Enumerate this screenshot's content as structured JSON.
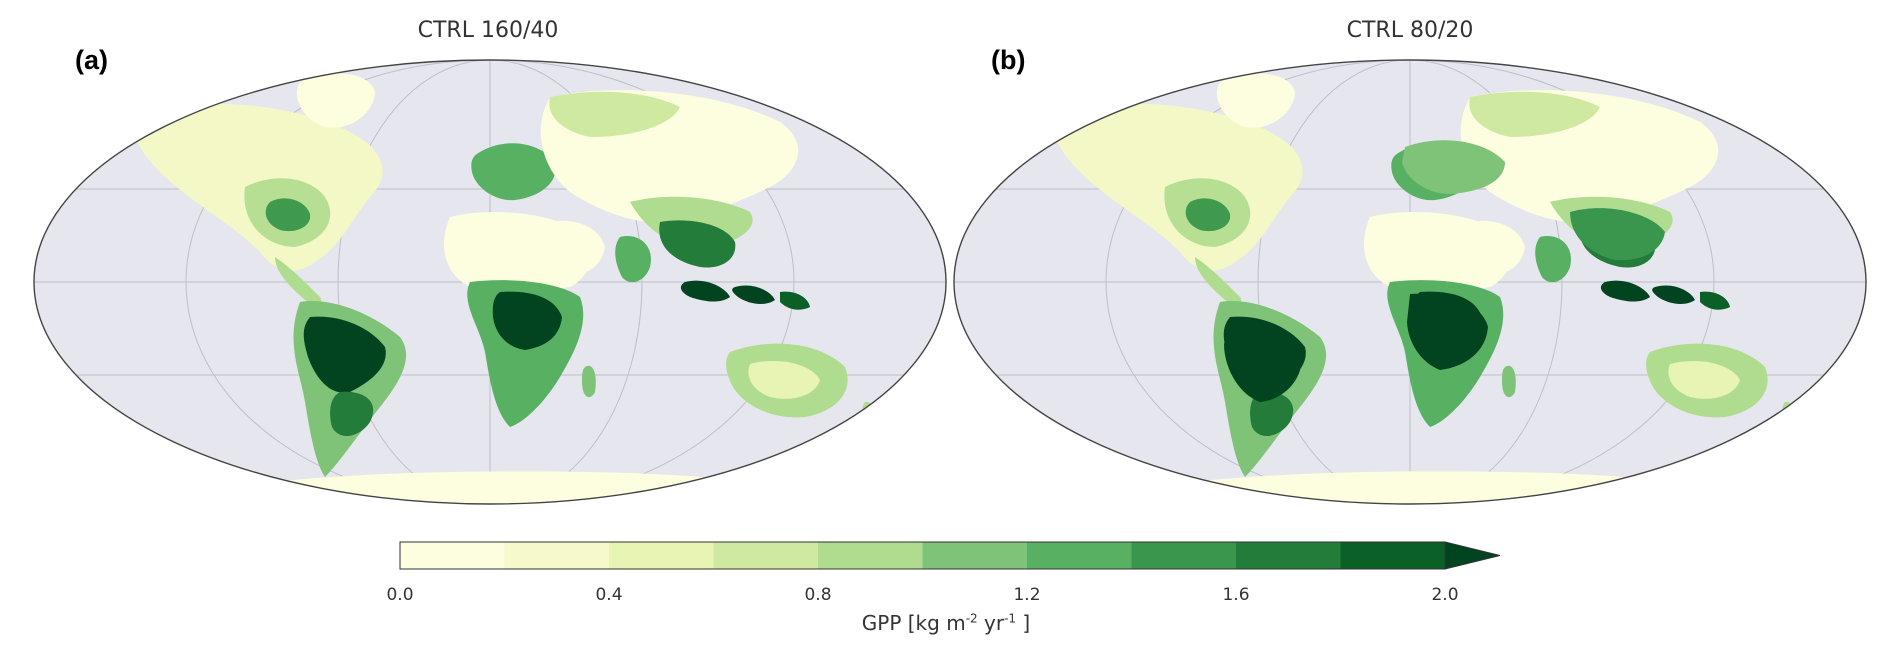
{
  "panels": [
    {
      "label": "(a)",
      "title": "CTRL 160/40"
    },
    {
      "label": "(b)",
      "title": "CTRL 80/20"
    }
  ],
  "colorbar": {
    "label_prefix": "GPP [kg m",
    "label_sup1": "-2",
    "label_mid": " yr",
    "label_sup2": "-1",
    "label_suffix": "]",
    "ticks": [
      "0.0",
      "0.4",
      "0.8",
      "1.2",
      "1.6",
      "2.0"
    ],
    "range": [
      0.0,
      2.0
    ],
    "step": 0.2,
    "extend": "max",
    "colors": [
      "#fdfde0",
      "#f5f9cb",
      "#e7f4b3",
      "#cfe9a1",
      "#b0dc8f",
      "#7fc378",
      "#58b163",
      "#3a964d",
      "#237c3a",
      "#0b6028",
      "#034420"
    ]
  },
  "map": {
    "projection": "mollweide",
    "ocean_color": "#e6e6ef",
    "grid": true
  }
}
